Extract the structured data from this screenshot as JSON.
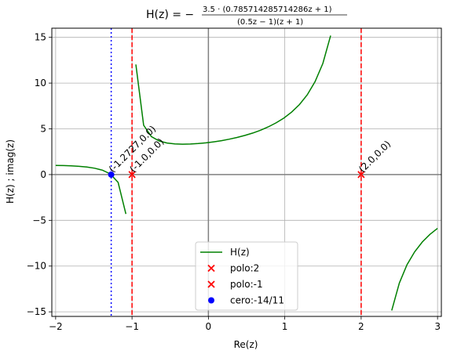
{
  "chart_data": {
    "type": "line",
    "title": "H(z) = −",
    "title_fraction": {
      "numerator": "3.5 · (0.785714285714286z + 1)",
      "denominator": "(0.5z − 1)(z + 1)"
    },
    "xlabel": "Re(z)",
    "ylabel": "H(z) ; imag(z)",
    "xlim": [
      -2.05,
      3.05
    ],
    "ylim": [
      -15.5,
      16.0
    ],
    "xticks": [
      -2,
      -1,
      0,
      1,
      2,
      3
    ],
    "xtick_labels": [
      "−2",
      "−1",
      "0",
      "1",
      "2",
      "3"
    ],
    "yticks": [
      -15,
      -10,
      -5,
      0,
      5,
      10,
      15
    ],
    "ytick_labels": [
      "−15",
      "−10",
      "−5",
      "0",
      "5",
      "10",
      "15"
    ],
    "grid": true,
    "legend_position": "lower-center",
    "series": [
      {
        "name": "H(z)",
        "kind": "line",
        "color": "#008000",
        "formula": {
          "k": 3.5,
          "a": 0.785714285714286,
          "b": 0.5
        },
        "segments": [
          [
            -2.0,
            -1.08
          ],
          [
            -0.95,
            1.6
          ],
          [
            2.4,
            3.0
          ]
        ],
        "step": 0.1
      }
    ],
    "poles": [
      {
        "name": "polo:2",
        "x": 2.0,
        "y": 0.0,
        "color": "#ff0000",
        "marker": "x"
      },
      {
        "name": "polo:-1",
        "x": -1.0,
        "y": 0.0,
        "color": "#ff0000",
        "marker": "x"
      }
    ],
    "zeros": [
      {
        "name": "cero:-14/11",
        "x": -1.2727,
        "y": 0.0,
        "color": "#0000ff",
        "marker": "o"
      }
    ],
    "vlines": [
      {
        "x": -1.2727,
        "color": "#0000ff",
        "style": "dotted"
      },
      {
        "x": -1.0,
        "color": "#ff0000",
        "style": "dashed"
      },
      {
        "x": 2.0,
        "color": "#ff0000",
        "style": "dashed"
      }
    ],
    "annotations": [
      {
        "text": "(-1.2727,0.0)",
        "x": -1.2727,
        "y": 0.0
      },
      {
        "text": "(-1.0,0.0)",
        "x": -1.0,
        "y": 0.0
      },
      {
        "text": "(2.0,0.0)",
        "x": 2.0,
        "y": 0.0
      }
    ]
  }
}
